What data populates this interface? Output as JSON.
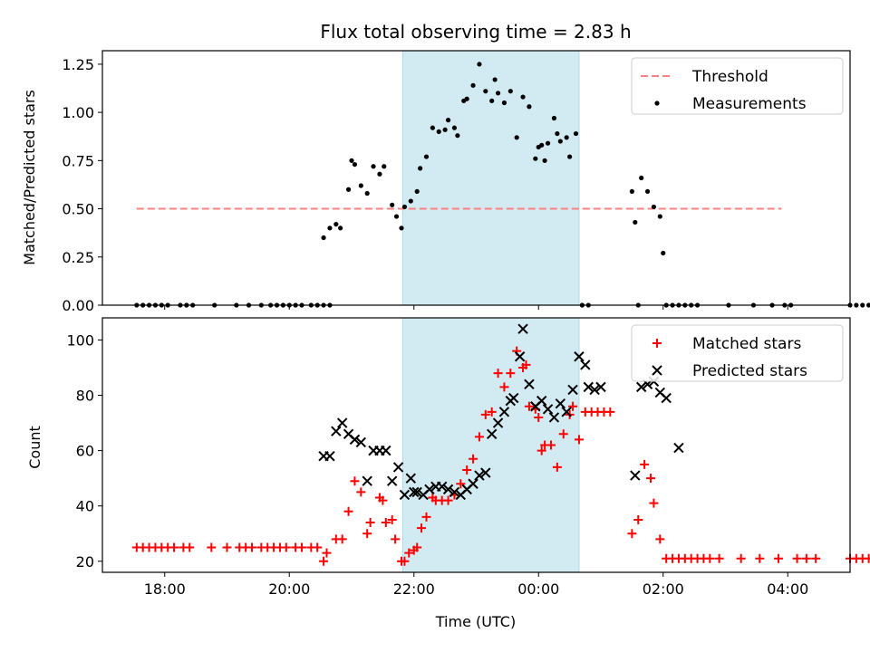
{
  "figure": {
    "title": "Flux total observing time = 2.83 h",
    "xlabel": "Time (UTC)",
    "x_ticks": [
      "18:00",
      "20:00",
      "22:00",
      "00:00",
      "02:00",
      "04:00"
    ],
    "colors": {
      "threshold": "#ff8080",
      "measurement": "#000000",
      "matched": "#ff0000",
      "predicted": "#000000",
      "span": "#add8e6"
    }
  },
  "chart_data": [
    {
      "type": "scatter",
      "ylabel": "Matched/Predicted stars",
      "x_unit": "hours after 18:00 UTC",
      "xlim": [
        -1.0,
        11.0
      ],
      "ylim": [
        0.0,
        1.32
      ],
      "y_ticks": [
        "0.00",
        "0.25",
        "0.50",
        "0.75",
        "1.00",
        "1.25"
      ],
      "shaded_span": [
        3.82,
        6.65
      ],
      "threshold": {
        "name": "Threshold",
        "value": 0.5,
        "x_range": [
          -0.45,
          9.9
        ]
      },
      "legend": [
        "Threshold",
        "Measurements"
      ],
      "series": [
        {
          "name": "Measurements",
          "points": [
            [
              -0.45,
              0
            ],
            [
              -0.35,
              0
            ],
            [
              -0.25,
              0
            ],
            [
              -0.15,
              0
            ],
            [
              -0.05,
              0
            ],
            [
              0.05,
              0
            ],
            [
              0.25,
              0
            ],
            [
              0.35,
              0
            ],
            [
              0.45,
              0
            ],
            [
              0.8,
              0
            ],
            [
              1.15,
              0
            ],
            [
              1.35,
              0
            ],
            [
              1.55,
              0
            ],
            [
              1.7,
              0
            ],
            [
              1.8,
              0
            ],
            [
              1.9,
              0
            ],
            [
              2.0,
              0
            ],
            [
              2.1,
              0
            ],
            [
              2.2,
              0
            ],
            [
              2.35,
              0
            ],
            [
              2.45,
              0
            ],
            [
              2.55,
              0
            ],
            [
              2.65,
              0
            ],
            [
              2.55,
              0.35
            ],
            [
              2.65,
              0.4
            ],
            [
              2.75,
              0.42
            ],
            [
              2.82,
              0.4
            ],
            [
              2.95,
              0.6
            ],
            [
              3.0,
              0.75
            ],
            [
              3.05,
              0.73
            ],
            [
              3.15,
              0.62
            ],
            [
              3.25,
              0.58
            ],
            [
              3.35,
              0.72
            ],
            [
              3.45,
              0.68
            ],
            [
              3.52,
              0.72
            ],
            [
              3.65,
              0.52
            ],
            [
              3.72,
              0.46
            ],
            [
              3.8,
              0.4
            ],
            [
              3.85,
              0.51
            ],
            [
              3.95,
              0.54
            ],
            [
              4.05,
              0.59
            ],
            [
              4.1,
              0.71
            ],
            [
              4.2,
              0.77
            ],
            [
              4.3,
              0.92
            ],
            [
              4.4,
              0.9
            ],
            [
              4.5,
              0.91
            ],
            [
              4.55,
              0.96
            ],
            [
              4.65,
              0.92
            ],
            [
              4.7,
              0.88
            ],
            [
              4.8,
              1.06
            ],
            [
              4.85,
              1.07
            ],
            [
              4.95,
              1.14
            ],
            [
              5.05,
              1.25
            ],
            [
              5.15,
              1.11
            ],
            [
              5.25,
              1.06
            ],
            [
              5.3,
              1.17
            ],
            [
              5.35,
              1.1
            ],
            [
              5.45,
              1.05
            ],
            [
              5.55,
              1.11
            ],
            [
              5.65,
              0.87
            ],
            [
              5.75,
              1.08
            ],
            [
              5.85,
              1.03
            ],
            [
              5.95,
              0.76
            ],
            [
              6.0,
              0.82
            ],
            [
              6.05,
              0.83
            ],
            [
              6.1,
              0.75
            ],
            [
              6.15,
              0.84
            ],
            [
              6.25,
              0.97
            ],
            [
              6.3,
              0.89
            ],
            [
              6.35,
              0.85
            ],
            [
              6.45,
              0.87
            ],
            [
              6.5,
              0.77
            ],
            [
              6.6,
              0.89
            ],
            [
              6.7,
              0
            ],
            [
              6.8,
              0
            ],
            [
              7.5,
              0.59
            ],
            [
              7.55,
              0.43
            ],
            [
              7.65,
              0.66
            ],
            [
              7.75,
              0.59
            ],
            [
              7.85,
              0.51
            ],
            [
              7.95,
              0.46
            ],
            [
              8.0,
              0.27
            ],
            [
              7.6,
              0
            ],
            [
              8.05,
              0
            ],
            [
              8.15,
              0
            ],
            [
              8.25,
              0
            ],
            [
              8.35,
              0
            ],
            [
              8.45,
              0
            ],
            [
              8.55,
              0
            ],
            [
              9.05,
              0
            ],
            [
              9.45,
              0
            ],
            [
              9.75,
              0
            ],
            [
              9.95,
              0
            ],
            [
              10.05,
              0
            ],
            [
              11.0,
              0
            ],
            [
              11.1,
              0
            ],
            [
              11.2,
              0
            ],
            [
              11.3,
              0
            ],
            [
              11.4,
              0
            ]
          ]
        }
      ]
    },
    {
      "type": "scatter",
      "ylabel": "Count",
      "x_unit": "hours after 18:00 UTC",
      "xlim": [
        -1.0,
        11.0
      ],
      "ylim": [
        16,
        108
      ],
      "y_ticks": [
        "20",
        "40",
        "60",
        "80",
        "100"
      ],
      "shaded_span": [
        3.82,
        6.65
      ],
      "legend": [
        "Matched stars",
        "Predicted stars"
      ],
      "series": [
        {
          "name": "Matched stars",
          "points": [
            [
              -0.45,
              25
            ],
            [
              -0.35,
              25
            ],
            [
              -0.25,
              25
            ],
            [
              -0.15,
              25
            ],
            [
              -0.05,
              25
            ],
            [
              0.05,
              25
            ],
            [
              0.15,
              25
            ],
            [
              0.3,
              25
            ],
            [
              0.4,
              25
            ],
            [
              0.75,
              25
            ],
            [
              1.0,
              25
            ],
            [
              1.2,
              25
            ],
            [
              1.3,
              25
            ],
            [
              1.4,
              25
            ],
            [
              1.55,
              25
            ],
            [
              1.65,
              25
            ],
            [
              1.75,
              25
            ],
            [
              1.85,
              25
            ],
            [
              1.95,
              25
            ],
            [
              2.1,
              25
            ],
            [
              2.2,
              25
            ],
            [
              2.35,
              25
            ],
            [
              2.45,
              25
            ],
            [
              2.55,
              20
            ],
            [
              2.6,
              23
            ],
            [
              2.75,
              28
            ],
            [
              2.85,
              28
            ],
            [
              2.95,
              38
            ],
            [
              3.05,
              49
            ],
            [
              3.15,
              45
            ],
            [
              3.25,
              30
            ],
            [
              3.3,
              34
            ],
            [
              3.45,
              43
            ],
            [
              3.5,
              42
            ],
            [
              3.55,
              34
            ],
            [
              3.65,
              35
            ],
            [
              3.7,
              28
            ],
            [
              3.8,
              20
            ],
            [
              3.85,
              20
            ],
            [
              3.92,
              23
            ],
            [
              4.0,
              24
            ],
            [
              4.05,
              25
            ],
            [
              4.12,
              32
            ],
            [
              4.2,
              36
            ],
            [
              4.3,
              43
            ],
            [
              4.35,
              42
            ],
            [
              4.45,
              42
            ],
            [
              4.55,
              42
            ],
            [
              4.65,
              44
            ],
            [
              4.75,
              48
            ],
            [
              4.85,
              53
            ],
            [
              4.95,
              57
            ],
            [
              5.05,
              65
            ],
            [
              5.15,
              73
            ],
            [
              5.25,
              74
            ],
            [
              5.35,
              88
            ],
            [
              5.45,
              83
            ],
            [
              5.55,
              88
            ],
            [
              5.65,
              96
            ],
            [
              5.75,
              90
            ],
            [
              5.8,
              91
            ],
            [
              5.85,
              76
            ],
            [
              5.95,
              75
            ],
            [
              6.0,
              72
            ],
            [
              6.05,
              60
            ],
            [
              6.1,
              62
            ],
            [
              6.2,
              62
            ],
            [
              6.3,
              54
            ],
            [
              6.4,
              66
            ],
            [
              6.5,
              73
            ],
            [
              6.55,
              76
            ],
            [
              6.65,
              64
            ],
            [
              6.75,
              74
            ],
            [
              6.85,
              74
            ],
            [
              6.95,
              74
            ],
            [
              7.05,
              74
            ],
            [
              7.15,
              74
            ],
            [
              7.5,
              30
            ],
            [
              7.6,
              35
            ],
            [
              7.7,
              55
            ],
            [
              7.8,
              50
            ],
            [
              7.85,
              41
            ],
            [
              7.95,
              28
            ],
            [
              8.05,
              21
            ],
            [
              8.15,
              21
            ],
            [
              8.25,
              21
            ],
            [
              8.35,
              21
            ],
            [
              8.45,
              21
            ],
            [
              8.55,
              21
            ],
            [
              8.65,
              21
            ],
            [
              8.75,
              21
            ],
            [
              8.9,
              21
            ],
            [
              9.25,
              21
            ],
            [
              9.55,
              21
            ],
            [
              9.85,
              21
            ],
            [
              10.15,
              21
            ],
            [
              10.3,
              21
            ],
            [
              10.45,
              21
            ],
            [
              11.0,
              21
            ],
            [
              11.1,
              21
            ],
            [
              11.2,
              21
            ],
            [
              11.3,
              21
            ],
            [
              11.4,
              21
            ]
          ]
        },
        {
          "name": "Predicted stars",
          "points": [
            [
              2.55,
              58
            ],
            [
              2.65,
              58
            ],
            [
              2.75,
              67
            ],
            [
              2.85,
              70
            ],
            [
              2.95,
              66
            ],
            [
              3.05,
              64
            ],
            [
              3.15,
              63
            ],
            [
              3.25,
              49
            ],
            [
              3.35,
              60
            ],
            [
              3.45,
              60
            ],
            [
              3.55,
              60
            ],
            [
              3.65,
              49
            ],
            [
              3.75,
              54
            ],
            [
              3.85,
              44
            ],
            [
              3.95,
              50
            ],
            [
              4.0,
              45
            ],
            [
              4.05,
              45
            ],
            [
              4.15,
              44
            ],
            [
              4.25,
              46
            ],
            [
              4.35,
              47
            ],
            [
              4.45,
              47
            ],
            [
              4.55,
              46
            ],
            [
              4.65,
              45
            ],
            [
              4.75,
              44
            ],
            [
              4.85,
              46
            ],
            [
              4.95,
              48
            ],
            [
              5.05,
              51
            ],
            [
              5.15,
              52
            ],
            [
              5.25,
              66
            ],
            [
              5.35,
              70
            ],
            [
              5.45,
              74
            ],
            [
              5.55,
              78
            ],
            [
              5.6,
              79
            ],
            [
              5.7,
              94
            ],
            [
              5.75,
              104
            ],
            [
              5.85,
              84
            ],
            [
              5.95,
              76
            ],
            [
              6.05,
              78
            ],
            [
              6.15,
              75
            ],
            [
              6.25,
              72
            ],
            [
              6.35,
              77
            ],
            [
              6.45,
              74
            ],
            [
              6.55,
              82
            ],
            [
              6.65,
              94
            ],
            [
              6.75,
              91
            ],
            [
              6.8,
              83
            ],
            [
              6.9,
              82
            ],
            [
              7.0,
              83
            ],
            [
              7.55,
              51
            ],
            [
              7.65,
              83
            ],
            [
              7.75,
              84
            ],
            [
              7.85,
              85
            ],
            [
              7.95,
              81
            ],
            [
              8.05,
              79
            ],
            [
              8.25,
              61
            ]
          ]
        }
      ]
    }
  ]
}
